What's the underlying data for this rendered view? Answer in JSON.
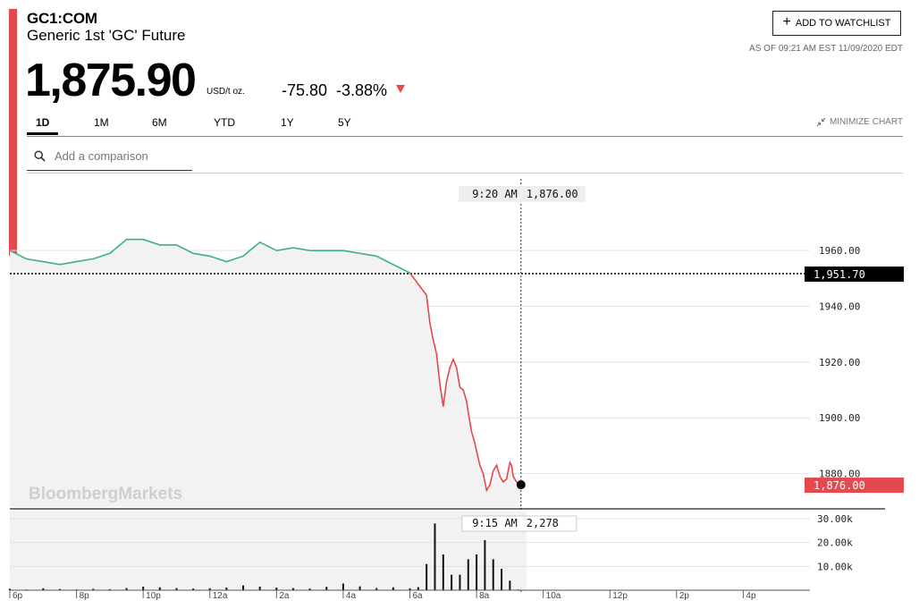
{
  "header": {
    "ticker": "GC1:COM",
    "name": "Generic 1st 'GC' Future",
    "price": "1,875.90",
    "unit": "USD/t oz.",
    "change": "-75.80",
    "change_pct": "-3.88%",
    "direction_icon": "triangle-down-icon",
    "as_of": "AS OF 09:21 AM EST 11/09/2020 EDT",
    "watchlist_label": "ADD TO WATCHLIST",
    "watchlist_icon": "plus-icon"
  },
  "tabs": [
    {
      "label": "1D",
      "active": true
    },
    {
      "label": "1M",
      "active": false
    },
    {
      "label": "6M",
      "active": false
    },
    {
      "label": "YTD",
      "active": false
    },
    {
      "label": "1Y",
      "active": false
    },
    {
      "label": "5Y",
      "active": false
    }
  ],
  "minimize_label": "MINIMIZE CHART",
  "minimize_icon": "collapse-arrows-icon",
  "compare": {
    "placeholder": "Add a comparison",
    "icon": "search-icon"
  },
  "colors": {
    "accent": "#e5484d",
    "up_line": "#3daf8a",
    "down_line": "#e5484d",
    "prev_close_label_bg": "#000000",
    "current_label_bg": "#e5484d"
  },
  "watermark": "BloombergMarkets",
  "chart_data": [
    {
      "type": "line",
      "time_labels": [
        "6p",
        "8p",
        "10p",
        "12a",
        "2a",
        "4a",
        "6a",
        "8a",
        "10a",
        "12p",
        "2p",
        "4p"
      ],
      "x_hours_from_6p": [
        0,
        0.5,
        1,
        1.5,
        2,
        2.5,
        3,
        3.5,
        4,
        4.5,
        5,
        5.5,
        6,
        6.5,
        7,
        7.5,
        8,
        8.5,
        9,
        9.5,
        10,
        10.5,
        11,
        11.5,
        12,
        12.25,
        12.5,
        12.6,
        12.7,
        12.8,
        12.9,
        13,
        13.1,
        13.2,
        13.3,
        13.4,
        13.5,
        13.6,
        13.7,
        13.75,
        13.85,
        13.95,
        14,
        14.1,
        14.2,
        14.3,
        14.4,
        14.5,
        14.6,
        14.7,
        14.8,
        14.9,
        15,
        15.05,
        15.1,
        15.2,
        15.333
      ],
      "y_price": [
        1960,
        1957,
        1956,
        1955,
        1956,
        1957,
        1959,
        1964,
        1964,
        1962,
        1962,
        1959,
        1958,
        1956,
        1958,
        1963,
        1960,
        1961,
        1960,
        1960,
        1960,
        1959,
        1958,
        1955,
        1952,
        1948,
        1944,
        1934,
        1928,
        1923,
        1912,
        1904,
        1913,
        1918,
        1921,
        1918,
        1911,
        1910,
        1906,
        1902,
        1895,
        1891,
        1888,
        1883,
        1880,
        1874,
        1876,
        1881,
        1883,
        1879,
        1877,
        1878,
        1884,
        1883,
        1879,
        1877,
        1876
      ],
      "y_ticks": [
        "1960.00",
        "1940.00",
        "1920.00",
        "1900.00",
        "1880.00"
      ],
      "y_tick_values": [
        1960,
        1940,
        1920,
        1900,
        1880
      ],
      "ylim": [
        1868,
        1987
      ],
      "xlim": [
        0,
        24
      ],
      "prev_close_value": 1951.7,
      "prev_close_label": "1,951.70",
      "current_label": "1,876.00",
      "crosshair_label_time": "9:20 AM",
      "crosshair_label_value": "1,876.00",
      "crosshair_x": 15.333,
      "grid": true
    },
    {
      "type": "bar",
      "x_hours_from_6p": [
        0,
        0.5,
        1,
        1.5,
        2,
        2.5,
        3,
        3.5,
        4,
        4.5,
        5,
        5.5,
        6,
        6.5,
        7,
        7.5,
        8,
        8.5,
        9,
        9.5,
        10,
        10.5,
        11,
        11.5,
        12,
        12.25,
        12.5,
        12.75,
        13,
        13.25,
        13.5,
        13.75,
        14,
        14.25,
        14.5,
        14.75,
        15,
        15.25
      ],
      "volume": [
        600,
        300,
        800,
        500,
        300,
        600,
        400,
        900,
        1500,
        1200,
        900,
        700,
        800,
        1100,
        2000,
        1500,
        1100,
        900,
        700,
        1400,
        2800,
        1600,
        900,
        1200,
        800,
        1300,
        11000,
        28000,
        15000,
        6500,
        6500,
        13000,
        15000,
        21000,
        13000,
        9000,
        4000,
        300
      ],
      "y_ticks": [
        "30.00k",
        "20.00k",
        "10.00k"
      ],
      "y_tick_values": [
        30000,
        20000,
        10000
      ],
      "ylim": [
        0,
        33000
      ],
      "crosshair_label_time": "9:15 AM",
      "crosshair_label_value": "2,278"
    }
  ]
}
